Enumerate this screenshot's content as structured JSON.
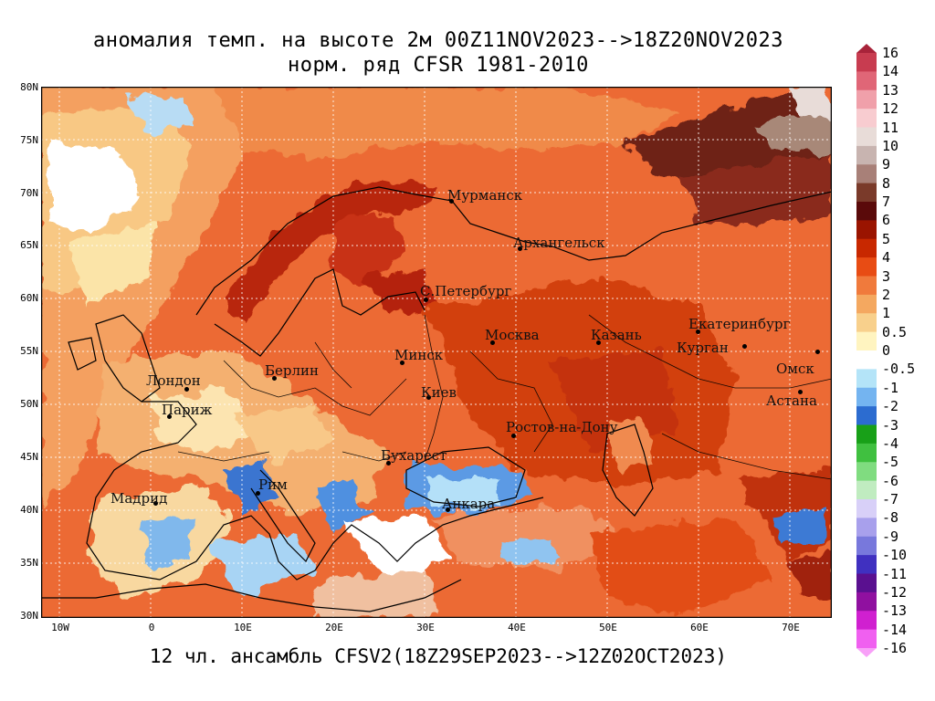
{
  "title": {
    "line1": "аномалия темп. на высоте 2м 00Z11NOV2023-->18Z20NOV2023",
    "line2": "норм. ряд CFSR 1981-2010"
  },
  "subtitle": "12 чл. ансамбль CFSV2(18Z29SEP2023-->12Z02OCT2023)",
  "axes": {
    "lat_labels": [
      "80N",
      "75N",
      "70N",
      "65N",
      "60N",
      "55N",
      "50N",
      "45N",
      "40N",
      "35N",
      "30N"
    ],
    "lon_labels": [
      "10W",
      "0",
      "10E",
      "20E",
      "30E",
      "40E",
      "50E",
      "60E",
      "70E"
    ]
  },
  "cities": [
    {
      "name": "Мурманск"
    },
    {
      "name": "Архангельск"
    },
    {
      "name": "С.Петербург"
    },
    {
      "name": "Москва"
    },
    {
      "name": "Казань"
    },
    {
      "name": "Екатеринбург"
    },
    {
      "name": "Курган"
    },
    {
      "name": "Омск"
    },
    {
      "name": "Астана"
    },
    {
      "name": "Минск"
    },
    {
      "name": "Киев"
    },
    {
      "name": "Берлин"
    },
    {
      "name": "Лондон"
    },
    {
      "name": "Париж"
    },
    {
      "name": "Ростов-на-Дону"
    },
    {
      "name": "Бухарест"
    },
    {
      "name": "Рим"
    },
    {
      "name": "Мадрид"
    },
    {
      "name": "Анкара"
    }
  ],
  "colorbar": {
    "labels": [
      "16",
      "14",
      "13",
      "12",
      "11",
      "10",
      "9",
      "8",
      "7",
      "6",
      "5",
      "4",
      "3",
      "2",
      "1",
      "0.5",
      "0",
      "-0.5",
      "-1",
      "-2",
      "-3",
      "-4",
      "-5",
      "-6",
      "-7",
      "-8",
      "-9",
      "-10",
      "-11",
      "-12",
      "-13",
      "-14",
      "-16"
    ],
    "colors": [
      "#a8233a",
      "#c83c50",
      "#e06677",
      "#f0a0aa",
      "#f8ccd0",
      "#e8dcd8",
      "#c8b4b0",
      "#a88078",
      "#7a3a2a",
      "#5a0a0a",
      "#9a1400",
      "#c82800",
      "#e84c14",
      "#f07a3c",
      "#f4a860",
      "#f8d08c",
      "#fff4c0",
      "#ffffff",
      "#b4e4f8",
      "#74b4f0",
      "#2c6cd0",
      "#18a018",
      "#40c040",
      "#80dc80",
      "#c0ecc0",
      "#d8d0f8",
      "#a8a0ec",
      "#7878dc",
      "#4030c0",
      "#5a1090",
      "#9010a0",
      "#d020d0",
      "#f060f0",
      "#f8a0f8"
    ]
  }
}
